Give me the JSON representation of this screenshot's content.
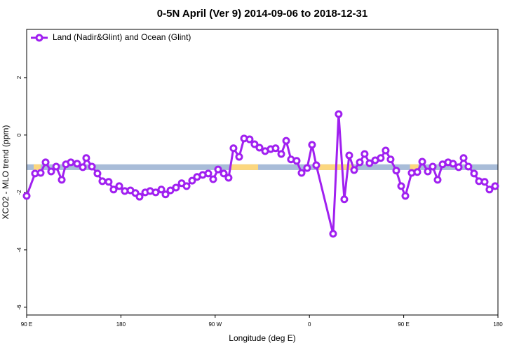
{
  "chart_data": {
    "type": "line",
    "title": "0-5N April (Ver 9)   2014-09-06 to 2018-12-31",
    "x_label": "Longitude (deg E)",
    "y_label": "XCO2 - MLO trend (ppm)",
    "xlim": [
      90,
      540
    ],
    "xticks": [
      {
        "value": 90,
        "label": "90 E"
      },
      180,
      {
        "value": 270,
        "label": "90 W"
      },
      {
        "value": 360,
        "label": "0"
      },
      {
        "value": 450,
        "label": "90 E"
      },
      {
        "value": 540,
        "label": "180"
      }
    ],
    "ylim": [
      -6.27,
      3.68
    ],
    "yticks": [
      2,
      0,
      -2,
      -4,
      -6
    ],
    "legend": "top-left",
    "reference_band": {
      "ymin": -1.22,
      "ymax": -1.02,
      "color": "#a8bcd8"
    },
    "highlight_ranges": {
      "color": "#fcd77f",
      "ranges": [
        [
          96.7,
          103.4
        ],
        [
          285.5,
          311
        ],
        [
          369,
          402.7
        ],
        [
          456,
          464
        ]
      ]
    },
    "series": [
      {
        "name": "Land (Nadir&Glint) and Ocean (Glint)",
        "color": "#a020f0",
        "x": [
          90,
          98.0,
          103.4,
          108.1,
          113.4,
          118.2,
          123.5,
          127.5,
          132.2,
          138.2,
          143.6,
          146.9,
          152.3,
          157.6,
          162.3,
          168.3,
          173.0,
          178.4,
          183.7,
          189.1,
          193.8,
          197.8,
          203.2,
          207.9,
          213.2,
          218.6,
          222.6,
          227.3,
          232.6,
          238.0,
          242.7,
          248.0,
          252.7,
          258.1,
          263.4,
          268.1,
          272.8,
          278.2,
          282.8,
          287.5,
          292.9,
          297.6,
          302.9,
          307.6,
          312.3,
          317.7,
          323.0,
          327.7,
          333.1,
          337.8,
          342.4,
          347.8,
          352.5,
          357.8,
          362.5,
          366.5,
          382.6,
          387.9,
          393.3,
          398.0,
          402.7,
          408.1,
          412.7,
          417.4,
          422.8,
          428.1,
          432.8,
          437.5,
          442.9,
          447.6,
          451.6,
          457.6,
          463.0,
          467.7,
          473.0,
          477.7,
          482.4,
          487.1,
          492.4,
          497.1,
          502.5,
          507.2,
          511.8,
          517.2,
          521.9,
          527.3,
          531.9,
          537.3
        ],
        "values": [
          -2.12,
          -1.34,
          -1.32,
          -0.95,
          -1.27,
          -1.1,
          -1.56,
          -1.02,
          -0.95,
          -1.0,
          -1.12,
          -0.8,
          -1.1,
          -1.34,
          -1.61,
          -1.63,
          -1.9,
          -1.78,
          -1.95,
          -1.93,
          -2.02,
          -2.15,
          -2.0,
          -1.95,
          -2.0,
          -1.9,
          -2.07,
          -1.93,
          -1.83,
          -1.68,
          -1.78,
          -1.59,
          -1.46,
          -1.39,
          -1.34,
          -1.54,
          -1.2,
          -1.34,
          -1.49,
          -0.46,
          -0.76,
          -0.12,
          -0.15,
          -0.32,
          -0.44,
          -0.56,
          -0.49,
          -0.46,
          -0.66,
          -0.2,
          -0.85,
          -0.9,
          -1.32,
          -1.15,
          -0.34,
          -1.05,
          -3.44,
          0.73,
          -2.24,
          -0.71,
          -1.22,
          -0.95,
          -0.66,
          -0.98,
          -0.88,
          -0.8,
          -0.54,
          -0.85,
          -1.24,
          -1.78,
          -2.12,
          -1.32,
          -1.29,
          -0.93,
          -1.27,
          -1.1,
          -1.56,
          -1.02,
          -0.95,
          -1.0,
          -1.12,
          -0.8,
          -1.1,
          -1.34,
          -1.61,
          -1.63,
          -1.9,
          -1.78
        ]
      }
    ]
  }
}
